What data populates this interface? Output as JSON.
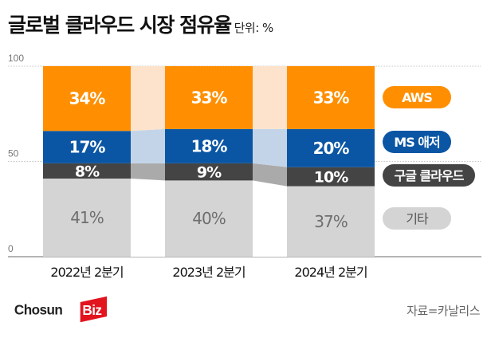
{
  "header": {
    "title": "글로벌 클라우드 시장 점유율",
    "unit": "단위: %"
  },
  "footer": {
    "source": "자료=카날리스",
    "logo_text": "ChosunBiz"
  },
  "chart_data": {
    "type": "bar",
    "stacked": true,
    "title": "글로벌 클라우드 시장 점유율",
    "unit": "단위: %",
    "categories": [
      "2022년 2분기",
      "2023년 2분기",
      "2024년 2분기"
    ],
    "ylim": [
      0,
      100
    ],
    "yticks": [
      "100",
      "50",
      "0"
    ],
    "ytick_values": [
      100,
      50,
      0
    ],
    "grid": true,
    "legend_position": "right",
    "series": [
      {
        "name": "기타",
        "values": [
          41,
          40,
          37
        ],
        "labels": [
          "41%",
          "40%",
          "37%"
        ],
        "color": "#D4D4D4",
        "link_color": "#FFFFFF",
        "text_color": "#6E6E6E",
        "legend_text_color": "#555555"
      },
      {
        "name": "구글 클라우드",
        "values": [
          8,
          9,
          10
        ],
        "labels": [
          "8%",
          "9%",
          "10%"
        ],
        "color": "#444444",
        "link_color": "#AAAAAA",
        "text_color": "#FFFFFF",
        "legend_text_color": "#FFFFFF"
      },
      {
        "name": "MS 애저",
        "values": [
          17,
          18,
          20
        ],
        "labels": [
          "17%",
          "18%",
          "20%"
        ],
        "color": "#0B56A4",
        "link_color": "#C3D4E9",
        "text_color": "#FFFFFF",
        "legend_text_color": "#FFFFFF"
      },
      {
        "name": "AWS",
        "values": [
          34,
          33,
          33
        ],
        "labels": [
          "34%",
          "33%",
          "33%"
        ],
        "color": "#FF8F00",
        "link_color": "#FDE3CB",
        "text_color": "#FFFFFF",
        "legend_text_color": "#FFFFFF"
      }
    ]
  }
}
